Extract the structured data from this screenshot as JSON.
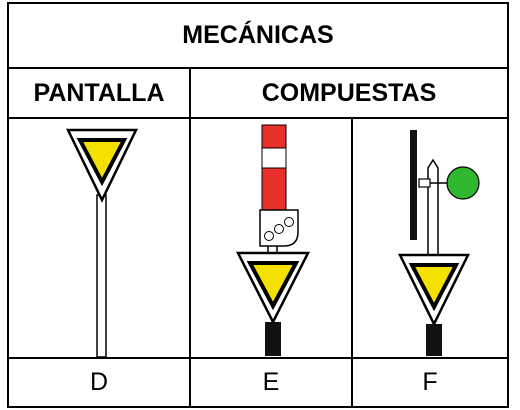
{
  "header": {
    "title": "MECÁNICAS"
  },
  "table": {
    "headers": [
      "PANTALLA",
      "COMPUESTAS"
    ],
    "labels": [
      "D",
      "E",
      "F"
    ]
  }
}
